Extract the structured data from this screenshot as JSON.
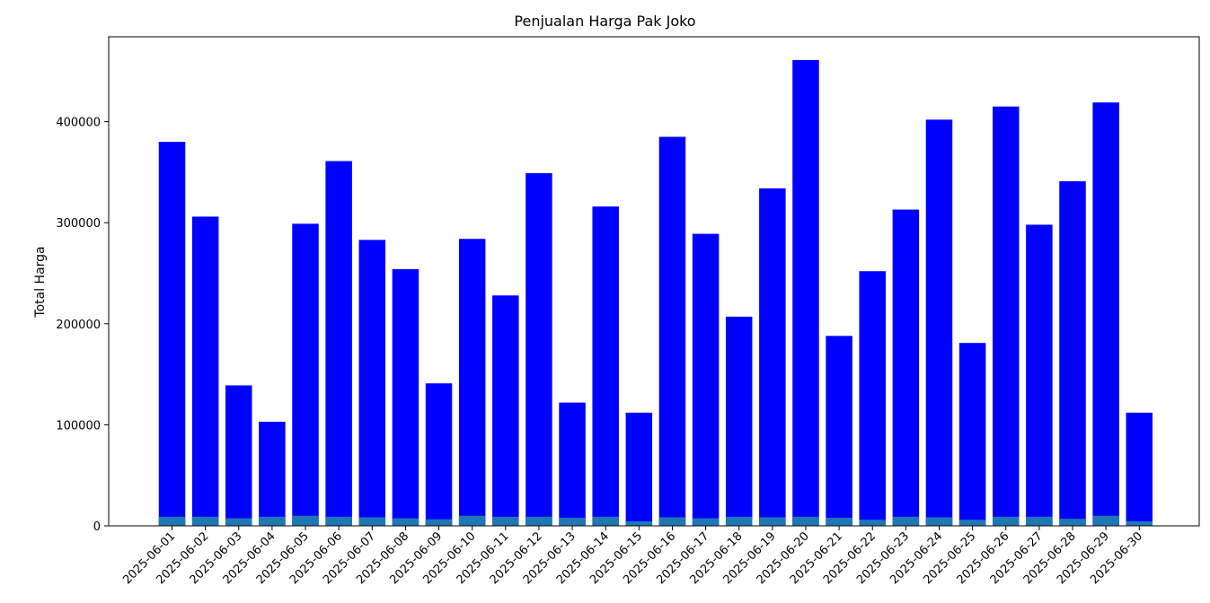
{
  "chart_data": {
    "type": "bar",
    "title": "Penjualan Harga Pak Joko",
    "ylabel": "Total Harga",
    "ylim": [
      0,
      484000
    ],
    "yticks": [
      0,
      100000,
      200000,
      300000,
      400000
    ],
    "ytick_labels": [
      "0",
      "100000",
      "200000",
      "300000",
      "400000"
    ],
    "categories": [
      "2025-06-01",
      "2025-06-02",
      "2025-06-03",
      "2025-06-04",
      "2025-06-05",
      "2025-06-06",
      "2025-06-07",
      "2025-06-08",
      "2025-06-09",
      "2025-06-10",
      "2025-06-11",
      "2025-06-12",
      "2025-06-13",
      "2025-06-14",
      "2025-06-15",
      "2025-06-16",
      "2025-06-17",
      "2025-06-18",
      "2025-06-19",
      "2025-06-20",
      "2025-06-21",
      "2025-06-22",
      "2025-06-23",
      "2025-06-24",
      "2025-06-25",
      "2025-06-26",
      "2025-06-27",
      "2025-06-28",
      "2025-06-29",
      "2025-06-30"
    ],
    "series": [
      {
        "color": "#0000ff",
        "values": [
          380000,
          306000,
          139000,
          103000,
          299000,
          361000,
          283000,
          254000,
          141000,
          284000,
          228000,
          349000,
          122000,
          316000,
          112000,
          385000,
          289000,
          207000,
          334000,
          461000,
          188000,
          252000,
          313000,
          402000,
          181000,
          415000,
          298000,
          341000,
          419000,
          112000
        ]
      },
      {
        "color": "#1f77b4",
        "values": [
          9000,
          9000,
          7500,
          9000,
          10000,
          9000,
          8500,
          7500,
          6500,
          10000,
          9000,
          9000,
          8000,
          9000,
          4500,
          8500,
          7500,
          9000,
          8500,
          9000,
          8000,
          6000,
          9000,
          8500,
          6000,
          9000,
          9000,
          7000,
          10000,
          4500
        ]
      }
    ],
    "grid": false
  }
}
